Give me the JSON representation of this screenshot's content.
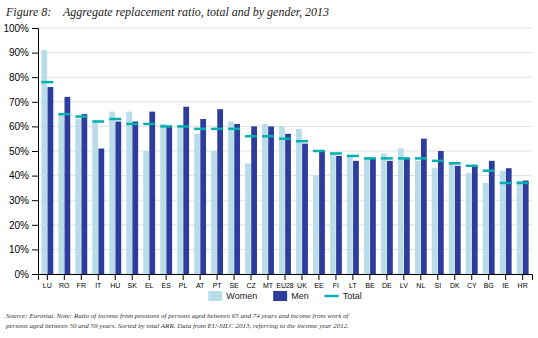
{
  "chart_data": {
    "type": "bar",
    "title": "Figure 8:    Aggregate replacement ratio, total and by gender, 2013",
    "annotations": [
      "Source: Eurostat. Note: Ratio of income from pensions of persons aged between 65 and 74 years and income from work of",
      "persons aged between 50 and 59 years. Sorted by total ARR. Data from EU-SILC 2013, referring to the income year 2012."
    ],
    "categories": [
      "LU",
      "RO",
      "FR",
      "IT",
      "HU",
      "SK",
      "EL",
      "ES",
      "PL",
      "AT",
      "PT",
      "SE",
      "CZ",
      "MT",
      "EU28",
      "UK",
      "EE",
      "FI",
      "LT",
      "BE",
      "DE",
      "LV",
      "NL",
      "SI",
      "DK",
      "CY",
      "BG",
      "IE",
      "HR"
    ],
    "series": [
      {
        "name": "Women",
        "color": "#b8dce8",
        "type": "bar",
        "values": [
          91,
          65,
          63,
          62,
          66,
          66,
          50,
          61,
          60,
          57,
          50,
          62,
          45,
          61,
          60,
          59,
          40,
          49,
          48,
          47,
          49,
          51,
          46,
          43,
          45,
          41,
          37,
          42,
          38
        ]
      },
      {
        "name": "Men",
        "color": "#2e3d9b",
        "type": "bar",
        "values": [
          76,
          72,
          65,
          51,
          62,
          62,
          66,
          60,
          68,
          63,
          67,
          61,
          60,
          60,
          57,
          53,
          50,
          48,
          46,
          47,
          46,
          47,
          55,
          50,
          44,
          44,
          46,
          43,
          38
        ]
      },
      {
        "name": "Total",
        "color": "#00b0b0",
        "type": "tick",
        "values": [
          78,
          65,
          64,
          62,
          63,
          61,
          61,
          60,
          60,
          59,
          59,
          59,
          56,
          56,
          55,
          54,
          50,
          49,
          48,
          47,
          47,
          47,
          47,
          46,
          45,
          44,
          42,
          37,
          37
        ]
      }
    ],
    "ylim": [
      0,
      100
    ],
    "yticks": [
      {
        "value": 0,
        "label": "0%"
      },
      {
        "value": 10,
        "label": "10%"
      },
      {
        "value": 20,
        "label": "20%"
      },
      {
        "value": 30,
        "label": "30%"
      },
      {
        "value": 40,
        "label": "40%"
      },
      {
        "value": 50,
        "label": "50%"
      },
      {
        "value": 60,
        "label": "60%"
      },
      {
        "value": 70,
        "label": "70%"
      },
      {
        "value": 80,
        "label": "80%"
      },
      {
        "value": 90,
        "label": "90%"
      },
      {
        "value": 100,
        "label": "100%"
      }
    ],
    "grid": true,
    "legend": "bottom"
  }
}
